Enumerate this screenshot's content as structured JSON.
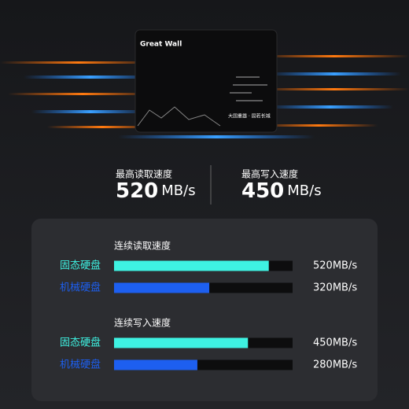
{
  "brand": {
    "logo": "Great Wall",
    "tagline": "大国重器 · 固若长城"
  },
  "headline": [
    {
      "label": "最高读取速度",
      "value": 520,
      "unit": "MB/s"
    },
    {
      "label": "最高写入速度",
      "value": 450,
      "unit": "MB/s"
    }
  ],
  "xlim": [
    0,
    600
  ],
  "comparisons": [
    {
      "title": "连续读取速度",
      "rows": [
        {
          "name": "固态硬盘",
          "value": 520,
          "value_label": "520MB/s",
          "color": "#3ef2e2"
        },
        {
          "name": "机械硬盘",
          "value": 320,
          "value_label": "320MB/s",
          "color": "#1d5ff0"
        }
      ]
    },
    {
      "title": "连续写入速度",
      "rows": [
        {
          "name": "固态硬盘",
          "value": 450,
          "value_label": "450MB/s",
          "color": "#3ef2e2"
        },
        {
          "name": "机械硬盘",
          "value": 280,
          "value_label": "280MB/s",
          "color": "#1d5ff0"
        }
      ]
    }
  ]
}
